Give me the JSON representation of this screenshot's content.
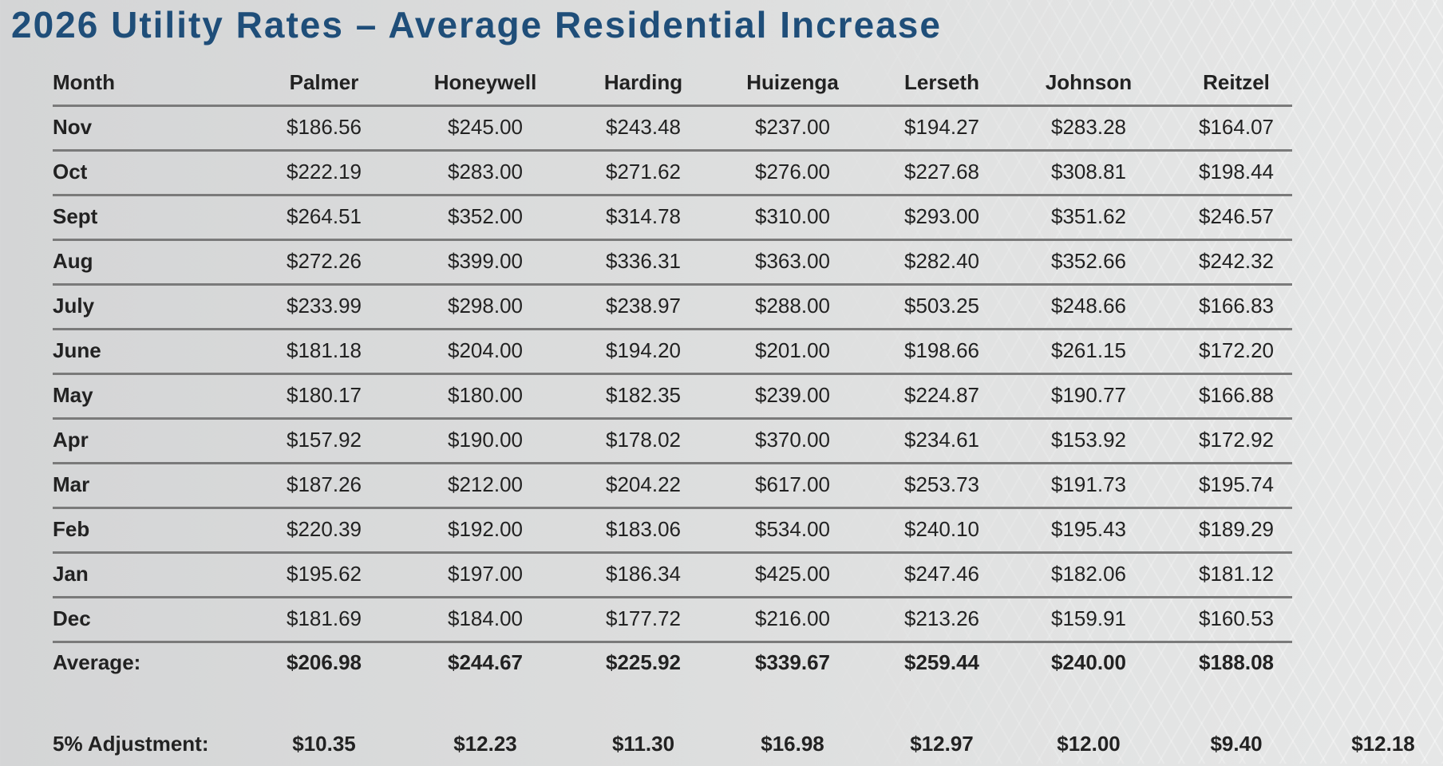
{
  "title": "2026 Utility Rates – Average Residential Increase",
  "columns": [
    "Month",
    "Palmer",
    "Honeywell",
    "Harding",
    "Huizenga",
    "Lerseth",
    "Johnson",
    "Reitzel"
  ],
  "rows": [
    {
      "month": "Nov",
      "values": [
        "$186.56",
        "$245.00",
        "$243.48",
        "$237.00",
        "$194.27",
        "$283.28",
        "$164.07"
      ]
    },
    {
      "month": "Oct",
      "values": [
        "$222.19",
        "$283.00",
        "$271.62",
        "$276.00",
        "$227.68",
        "$308.81",
        "$198.44"
      ]
    },
    {
      "month": "Sept",
      "values": [
        "$264.51",
        "$352.00",
        "$314.78",
        "$310.00",
        "$293.00",
        "$351.62",
        "$246.57"
      ]
    },
    {
      "month": "Aug",
      "values": [
        "$272.26",
        "$399.00",
        "$336.31",
        "$363.00",
        "$282.40",
        "$352.66",
        "$242.32"
      ]
    },
    {
      "month": "July",
      "values": [
        "$233.99",
        "$298.00",
        "$238.97",
        "$288.00",
        "$503.25",
        "$248.66",
        "$166.83"
      ]
    },
    {
      "month": "June",
      "values": [
        "$181.18",
        "$204.00",
        "$194.20",
        "$201.00",
        "$198.66",
        "$261.15",
        "$172.20"
      ]
    },
    {
      "month": "May",
      "values": [
        "$180.17",
        "$180.00",
        "$182.35",
        "$239.00",
        "$224.87",
        "$190.77",
        "$166.88"
      ]
    },
    {
      "month": "Apr",
      "values": [
        "$157.92",
        "$190.00",
        "$178.02",
        "$370.00",
        "$234.61",
        "$153.92",
        "$172.92"
      ]
    },
    {
      "month": "Mar",
      "values": [
        "$187.26",
        "$212.00",
        "$204.22",
        "$617.00",
        "$253.73",
        "$191.73",
        "$195.74"
      ]
    },
    {
      "month": "Feb",
      "values": [
        "$220.39",
        "$192.00",
        "$183.06",
        "$534.00",
        "$240.10",
        "$195.43",
        "$189.29"
      ]
    },
    {
      "month": "Jan",
      "values": [
        "$195.62",
        "$197.00",
        "$186.34",
        "$425.00",
        "$247.46",
        "$182.06",
        "$181.12"
      ]
    },
    {
      "month": "Dec",
      "values": [
        "$181.69",
        "$184.00",
        "$177.72",
        "$216.00",
        "$213.26",
        "$159.91",
        "$160.53"
      ]
    }
  ],
  "average": {
    "label": "Average:",
    "values": [
      "$206.98",
      "$244.67",
      "$225.92",
      "$339.67",
      "$259.44",
      "$240.00",
      "$188.08"
    ]
  },
  "adjustment": {
    "label": "5% Adjustment:",
    "values": [
      "$10.35",
      "$12.23",
      "$11.30",
      "$16.98",
      "$12.97",
      "$12.00",
      "$9.40",
      "$12.18"
    ]
  }
}
